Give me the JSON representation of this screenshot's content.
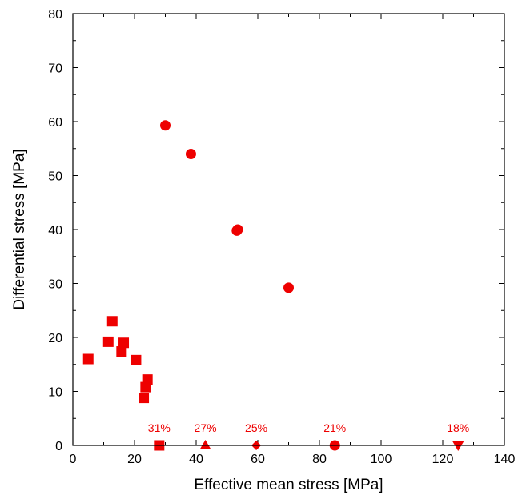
{
  "chart_data": {
    "type": "scatter",
    "title": "",
    "xlabel": "Effective mean stress [MPa]",
    "ylabel": "Differential stress [MPa]",
    "xlim": [
      0,
      140
    ],
    "ylim": [
      0,
      80
    ],
    "xticks": [
      0,
      20,
      40,
      60,
      80,
      100,
      120,
      140
    ],
    "yticks": [
      0,
      10,
      20,
      30,
      40,
      50,
      60,
      70,
      80
    ],
    "grid": false,
    "legend": "none",
    "color": "#ee0000",
    "series": [
      {
        "marker": "square",
        "points": [
          [
            5,
            16
          ],
          [
            11.5,
            19.2
          ],
          [
            12.8,
            23
          ],
          [
            15.8,
            17.4
          ],
          [
            16.5,
            19
          ],
          [
            20.5,
            15.8
          ],
          [
            23,
            8.8
          ],
          [
            23.6,
            10.8
          ],
          [
            24.2,
            12.2
          ],
          [
            28,
            0
          ]
        ]
      },
      {
        "marker": "circle",
        "points": [
          [
            30,
            59.3
          ],
          [
            38.3,
            54
          ],
          [
            53.2,
            39.8
          ],
          [
            53.5,
            40
          ],
          [
            70,
            29.2
          ],
          [
            85,
            0
          ]
        ]
      },
      {
        "marker": "triangle-up",
        "points": [
          [
            43,
            0
          ]
        ]
      },
      {
        "marker": "diamond",
        "points": [
          [
            59.5,
            0
          ]
        ]
      },
      {
        "marker": "triangle-down",
        "points": [
          [
            125,
            0
          ]
        ]
      }
    ],
    "annotations": [
      {
        "text": "31%",
        "x": 28,
        "y": 0
      },
      {
        "text": "27%",
        "x": 43,
        "y": 0
      },
      {
        "text": "25%",
        "x": 59.5,
        "y": 0
      },
      {
        "text": "21%",
        "x": 85,
        "y": 0
      },
      {
        "text": "18%",
        "x": 125,
        "y": 0
      }
    ]
  }
}
